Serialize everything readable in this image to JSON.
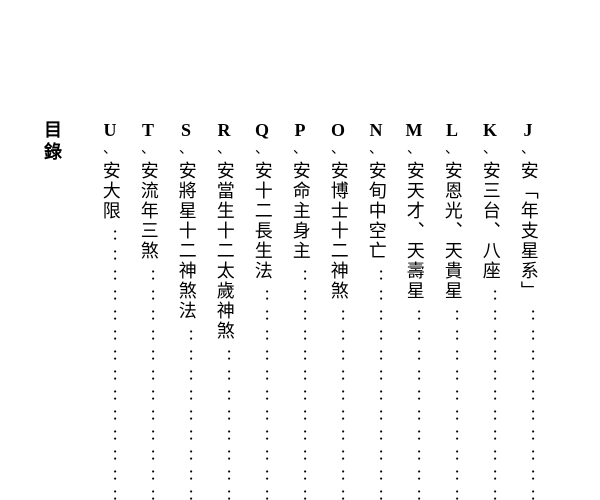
{
  "toc_label": "目錄",
  "entries": [
    {
      "marker": "J",
      "sep": "、",
      "text": "安「年支星系」"
    },
    {
      "marker": "K",
      "sep": "、",
      "text": "安三台、八座"
    },
    {
      "marker": "L",
      "sep": "、",
      "text": "安恩光、天貴星"
    },
    {
      "marker": "M",
      "sep": "、",
      "text": "安天才、天壽星"
    },
    {
      "marker": "N",
      "sep": "、",
      "text": "安旬中空亡"
    },
    {
      "marker": "O",
      "sep": "、",
      "text": "安博士十二神煞"
    },
    {
      "marker": "P",
      "sep": "、",
      "text": "安命主身主"
    },
    {
      "marker": "Q",
      "sep": "、",
      "text": "安十二長生法"
    },
    {
      "marker": "R",
      "sep": "、",
      "text": "安當生十二太歲神煞"
    },
    {
      "marker": "S",
      "sep": "、",
      "text": "安將星十二神煞法"
    },
    {
      "marker": "T",
      "sep": "、",
      "text": "安流年三煞"
    },
    {
      "marker": "U",
      "sep": "、",
      "text": "安大限"
    }
  ],
  "dot_char": "：：：：：：：：：：：：：：",
  "style": {
    "background": "#ffffff",
    "text_color": "#000000",
    "marker_fontsize": 18,
    "text_fontsize": 18,
    "column_gap": 14
  }
}
